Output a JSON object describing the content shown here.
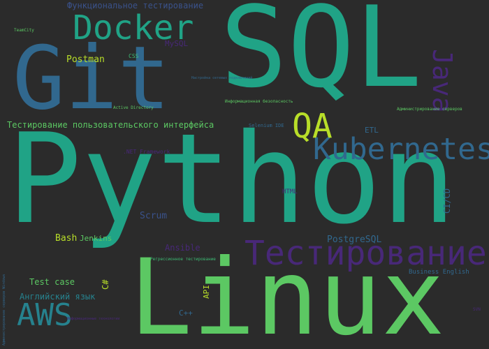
{
  "background": "#2b2b2b",
  "palette": {
    "green": "#5cc863",
    "teal": "#20a386",
    "blue": "#31688e",
    "navy": "#3a528b",
    "purple": "#482878",
    "lime": "#b8de29",
    "mint": "#3dbc74",
    "sea": "#26828e"
  },
  "words": [
    {
      "key": "python",
      "text": "Python",
      "color": "#20a386",
      "weight": 1.0
    },
    {
      "key": "sql",
      "text": "SQL",
      "color": "#20a386",
      "weight": 0.85
    },
    {
      "key": "linux",
      "text": "Linux",
      "color": "#5cc863",
      "weight": 0.8
    },
    {
      "key": "git",
      "text": "Git",
      "color": "#31688e",
      "weight": 0.7
    },
    {
      "key": "testirovanie",
      "text": "Тестирование",
      "color": "#482878",
      "weight": 0.35
    },
    {
      "key": "docker",
      "text": "Docker",
      "color": "#20a386",
      "weight": 0.3
    },
    {
      "key": "kubernetes",
      "text": "Kubernetes",
      "color": "#31688e",
      "weight": 0.3
    },
    {
      "key": "qa",
      "text": "QA",
      "color": "#b8de29",
      "weight": 0.3
    },
    {
      "key": "aws",
      "text": "AWS",
      "color": "#26828e",
      "weight": 0.28
    },
    {
      "key": "java",
      "text": "Java",
      "color": "#482878",
      "weight": 0.25
    },
    {
      "key": "ui-testing",
      "text": "Тестирование пользовательского интерфейса",
      "color": "#5cc863",
      "weight": 0.08
    },
    {
      "key": "func-testing",
      "text": "Функциональное тестирование",
      "color": "#3a528b",
      "weight": 0.08
    },
    {
      "key": "postman",
      "text": "Postman",
      "color": "#b8de29",
      "weight": 0.08
    },
    {
      "key": "postgresql",
      "text": "PostgreSQL",
      "color": "#31688e",
      "weight": 0.08
    },
    {
      "key": "scrum",
      "text": "Scrum",
      "color": "#3a528b",
      "weight": 0.07
    },
    {
      "key": "english",
      "text": "Английский язык",
      "color": "#26828e",
      "weight": 0.07
    },
    {
      "key": "testcase",
      "text": "Test case",
      "color": "#5cc863",
      "weight": 0.07
    },
    {
      "key": "bash",
      "text": "Bash",
      "color": "#b8de29",
      "weight": 0.07
    },
    {
      "key": "jenkins",
      "text": "Jenkins",
      "color": "#5cc863",
      "weight": 0.06
    },
    {
      "key": "ansible",
      "text": "Ansible",
      "color": "#482878",
      "weight": 0.06
    },
    {
      "key": "cicd",
      "text": "CI/CD",
      "color": "#31688e",
      "weight": 0.06
    },
    {
      "key": "csharp",
      "text": "C#",
      "color": "#b8de29",
      "weight": 0.06
    },
    {
      "key": "etl",
      "text": "ETL",
      "color": "#31688e",
      "weight": 0.05
    },
    {
      "key": "api",
      "text": "API",
      "color": "#b8de29",
      "weight": 0.05
    },
    {
      "key": "cpp",
      "text": "C++",
      "color": "#31688e",
      "weight": 0.05
    },
    {
      "key": "mysql",
      "text": "MySQL",
      "color": "#482878",
      "weight": 0.05
    },
    {
      "key": "html",
      "text": "HTML",
      "color": "#482878",
      "weight": 0.04
    },
    {
      "key": "netfw",
      "text": ".NET Framework",
      "color": "#482878",
      "weight": 0.04
    },
    {
      "key": "business-english",
      "text": "Business English",
      "color": "#31688e",
      "weight": 0.04
    },
    {
      "key": "css",
      "text": "CSS",
      "color": "#3dbc74",
      "weight": 0.03
    },
    {
      "key": "selenium",
      "text": "Selenium IDE",
      "color": "#31688e",
      "weight": 0.03
    },
    {
      "key": "infosec",
      "text": "Информационная безопасность",
      "color": "#5cc863",
      "weight": 0.02
    },
    {
      "key": "regression",
      "text": "Регрессионное тестирование",
      "color": "#3dbc74",
      "weight": 0.02
    },
    {
      "key": "netsetup",
      "text": "Настройка сетевых подключений",
      "color": "#31688e",
      "weight": 0.02
    },
    {
      "key": "active-directory",
      "text": "Active Directory",
      "color": "#5cc863",
      "weight": 0.02
    },
    {
      "key": "server-admin",
      "text": "Администрирование серверов",
      "color": "#5cc863",
      "weight": 0.02
    },
    {
      "key": "teamcity",
      "text": "TeamCity",
      "color": "#5cc863",
      "weight": 0.02
    },
    {
      "key": "infotech",
      "text": "Информационные технологии",
      "color": "#482878",
      "weight": 0.02
    },
    {
      "key": "svn",
      "text": "SVN",
      "color": "#482878",
      "weight": 0.02
    },
    {
      "key": "vertical-admin",
      "text": "Администрирование серверов Windows",
      "color": "#31688e",
      "weight": 0.02
    }
  ]
}
